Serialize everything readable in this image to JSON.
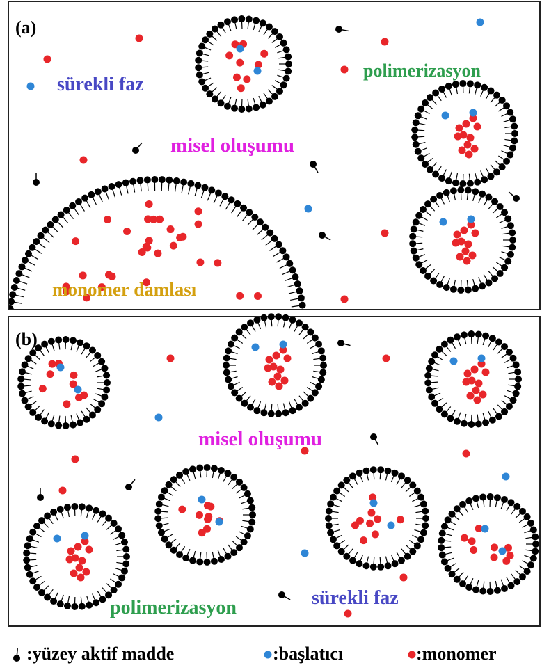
{
  "panel_a": {
    "label": "(a)",
    "continuous_phase": "sürekli faz",
    "micelle_formation": "misel oluşumu",
    "polymerization": "polimerizasyon",
    "monomer_droplet": "monomer damlası"
  },
  "panel_b": {
    "label": "(b)",
    "micelle_formation": "misel oluşumu",
    "polymerization": "polimerizasyon",
    "continuous_phase": "sürekli faz"
  },
  "legend": {
    "surfactant": ":yüzey aktif madde",
    "initiator": ":başlatıcı",
    "monomer": ":monomer"
  }
}
